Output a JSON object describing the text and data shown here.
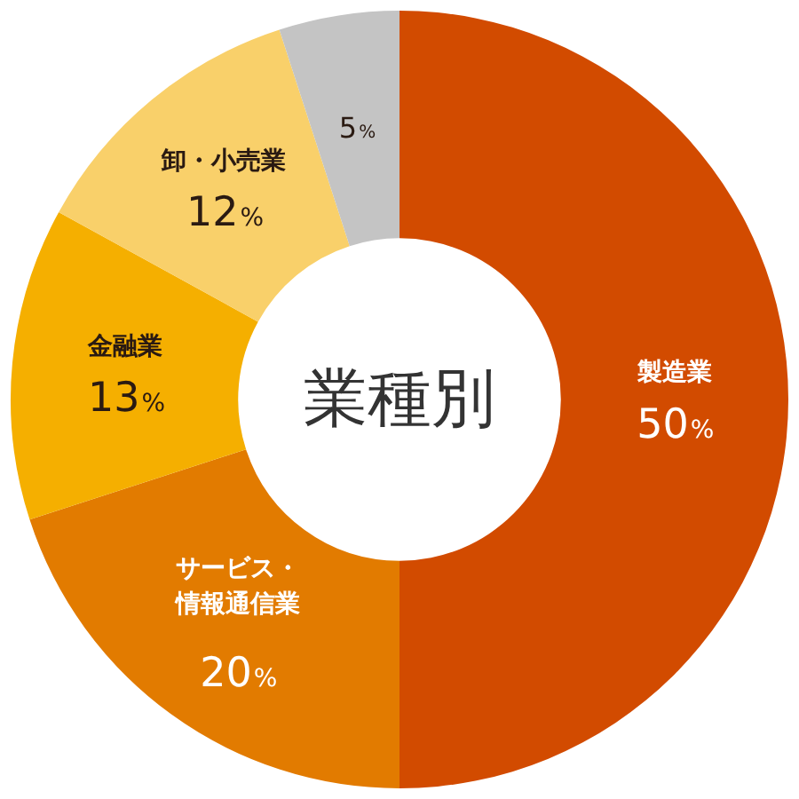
{
  "chart_data": {
    "type": "donut",
    "title": "業種別",
    "categories": [
      "製造業",
      "サービス・情報通信業",
      "金融業",
      "卸・小売業",
      null
    ],
    "values": [
      50,
      20,
      13,
      12,
      5
    ],
    "value_labels": [
      "50%",
      "20%",
      "13%",
      "12%",
      "5%"
    ],
    "colors": [
      "#d24b00",
      "#e27b00",
      "#f5af00",
      "#f9d06a",
      "#c4c4c4"
    ],
    "legend": false
  }
}
